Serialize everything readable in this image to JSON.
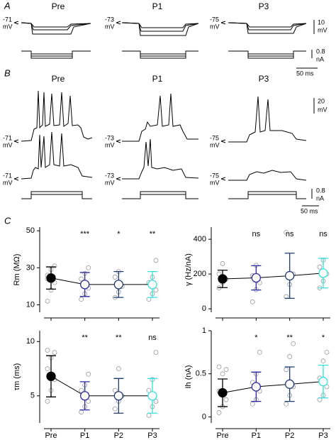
{
  "figure": {
    "A": {
      "label": "A",
      "titles": [
        "Pre",
        "P1",
        "P3"
      ],
      "baselines": [
        "-71",
        "-73",
        "-75"
      ],
      "baseline_unit": "mV",
      "scale_v": "10",
      "scale_v_unit": "mV",
      "scale_i": "0.8",
      "scale_i_unit": "nA",
      "scale_t": "50 ms"
    },
    "B": {
      "label": "B",
      "titles": [
        "Pre",
        "P1",
        "P3"
      ],
      "baselines_top": [
        "-71",
        "-73",
        "-75"
      ],
      "baselines_bottom": [
        "-71",
        "-73",
        "-75"
      ],
      "baseline_unit": "mV",
      "scale_v": "20",
      "scale_v_unit": "mV",
      "scale_i": "0.8",
      "scale_i_unit": "nA",
      "scale_t": "50 ms"
    },
    "C": {
      "label": "C"
    }
  },
  "chart_data": [
    {
      "type": "dot",
      "y_label": "Rm (MΩ)",
      "ylim": [
        6,
        52
      ],
      "yticks": [
        10,
        30,
        50
      ],
      "values": [
        24.5,
        21,
        21,
        21
      ],
      "errors": [
        6,
        6.5,
        7,
        7
      ],
      "points": [
        [
          12,
          18,
          22,
          26,
          29,
          31,
          24
        ],
        [
          13,
          16,
          19,
          24,
          27,
          30
        ],
        [
          14,
          17,
          20,
          25,
          28
        ],
        [
          13,
          16,
          18,
          22,
          25,
          34
        ]
      ],
      "significance": [
        null,
        "***",
        "*",
        "**"
      ],
      "colors": [
        "#000000",
        "#2a2aa0",
        "#1f3a78",
        "#33e0e0"
      ]
    },
    {
      "type": "dot",
      "y_label": "γ (Hz/nA)",
      "ylim": [
        -20,
        470
      ],
      "yticks": [
        0,
        200,
        400
      ],
      "values": [
        172,
        178,
        190,
        205
      ],
      "errors": [
        50,
        70,
        130,
        85
      ],
      "points": [
        [
          120,
          150,
          170,
          200,
          260
        ],
        [
          40,
          110,
          150,
          190,
          250
        ],
        [
          70,
          140,
          200,
          440
        ],
        [
          120,
          160,
          200,
          240,
          280
        ]
      ],
      "significance": [
        null,
        "ns",
        "ns",
        "ns"
      ],
      "colors": [
        "#000000",
        "#2a2aa0",
        "#1f3a78",
        "#33e0e0"
      ]
    },
    {
      "type": "dot",
      "y_label": "τm (ms)",
      "ylim": [
        2.5,
        11
      ],
      "yticks": [
        5,
        10
      ],
      "categories": [
        "Pre",
        "P1",
        "P2",
        "P3"
      ],
      "values": [
        6.8,
        5,
        5,
        5
      ],
      "errors": [
        1.9,
        1.3,
        1.6,
        1.6
      ],
      "points": [
        [
          4.5,
          5.5,
          6.5,
          7.5,
          8.5,
          9,
          9.2
        ],
        [
          3.5,
          4,
          4.5,
          5.5,
          6,
          7
        ],
        [
          3.8,
          4.5,
          5,
          5.5,
          7.5
        ],
        [
          3.2,
          4,
          4.5,
          5.5,
          6.5,
          9
        ]
      ],
      "significance": [
        null,
        "**",
        "**",
        "ns"
      ],
      "colors": [
        "#000000",
        "#2a2aa0",
        "#1f3a78",
        "#33e0e0"
      ]
    },
    {
      "type": "dot",
      "y_label": "Ih (nA)",
      "ylim": [
        -0.07,
        1
      ],
      "yticks": [
        0,
        0.5,
        1
      ],
      "categories": [
        "Pre",
        "P1",
        "P2",
        "P3"
      ],
      "values": [
        0.28,
        0.35,
        0.38,
        0.41
      ],
      "errors": [
        0.16,
        0.17,
        0.2,
        0.19
      ],
      "points": [
        [
          0.05,
          0.12,
          0.2,
          0.3,
          0.5,
          0.55,
          0.58
        ],
        [
          0.15,
          0.2,
          0.3,
          0.4,
          0.5,
          0.75
        ],
        [
          0.15,
          0.25,
          0.35,
          0.55,
          0.7,
          0.85
        ],
        [
          0.2,
          0.25,
          0.35,
          0.45,
          0.65,
          0.75
        ]
      ],
      "significance": [
        null,
        "*",
        "**",
        "*"
      ],
      "colors": [
        "#000000",
        "#2a2aa0",
        "#1f3a78",
        "#33e0e0"
      ]
    }
  ]
}
